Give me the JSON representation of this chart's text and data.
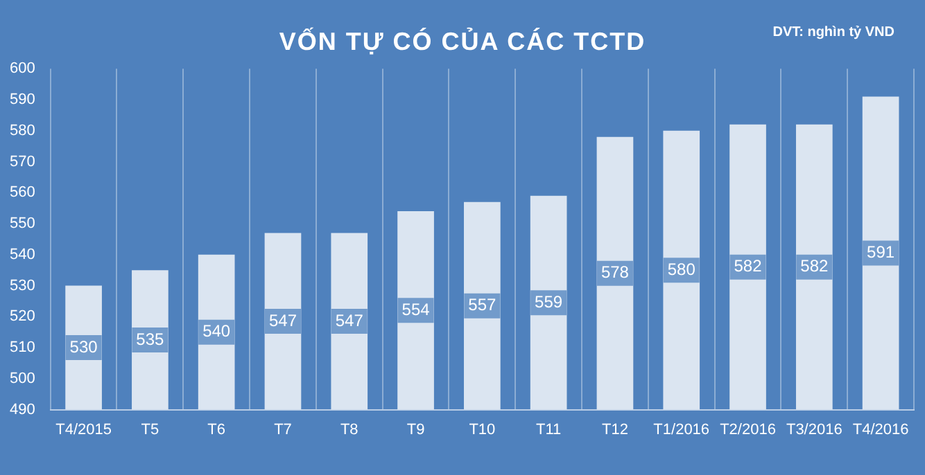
{
  "chart_data": {
    "type": "bar",
    "title": "VỐN TỰ CÓ CỦA CÁC TCTD",
    "annotations": [
      "DVT: nghìn tỷ VND"
    ],
    "categories": [
      "T4/2015",
      "T5",
      "T6",
      "T7",
      "T8",
      "T9",
      "T10",
      "T11",
      "T12",
      "T1/2016",
      "T2/2016",
      "T3/2016",
      "T4/2016"
    ],
    "values": [
      530,
      535,
      540,
      547,
      547,
      554,
      557,
      559,
      578,
      580,
      582,
      582,
      591
    ],
    "color": "#dbe5f1",
    "ylim": [
      490,
      600
    ],
    "yticks": [
      490,
      500,
      510,
      520,
      530,
      540,
      550,
      560,
      570,
      580,
      590,
      600
    ],
    "grid": "x",
    "data_labels": true
  }
}
